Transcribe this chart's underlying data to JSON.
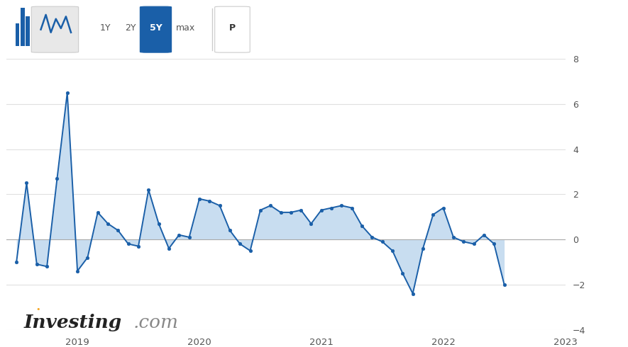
{
  "background_color": "#ffffff",
  "plot_bg_color": "#ffffff",
  "grid_color": "#e0e0e0",
  "line_color": "#1a5fa8",
  "fill_color": "#c8ddf0",
  "marker_color": "#1a5fa8",
  "zero_line_color": "#aaaaaa",
  "ylim": [
    -4,
    8
  ],
  "yticks": [
    -4,
    -2,
    0,
    2,
    4,
    6,
    8
  ],
  "ylabel_color": "#555555",
  "x_labels": [
    "2019",
    "2020",
    "2021",
    "2022",
    "2023"
  ],
  "x_positions": [
    6,
    18,
    30,
    42,
    54
  ],
  "data": [
    -1.0,
    2.5,
    -1.1,
    -1.2,
    2.7,
    6.5,
    -1.4,
    -0.8,
    1.2,
    0.7,
    0.4,
    -0.2,
    -0.3,
    2.2,
    0.7,
    -0.4,
    0.2,
    0.1,
    1.8,
    1.7,
    1.5,
    0.4,
    -0.2,
    -0.5,
    1.3,
    1.5,
    1.2,
    1.2,
    1.3,
    0.7,
    1.3,
    1.4,
    1.5,
    1.4,
    0.6,
    0.1,
    -0.1,
    -0.5,
    -1.5,
    -2.4,
    -0.4,
    1.1,
    1.4,
    0.1,
    -0.1,
    -0.2,
    0.2,
    -0.2,
    -2.0
  ],
  "header_bg": "#f7f7f7",
  "header_line_color": "#1a5fa8",
  "active_btn_bg": "#1a5fa8",
  "active_btn_color": "#ffffff",
  "inactive_btn_color": "#555555",
  "investing_color": "#222222",
  "com_color": "#888888",
  "dot_color": "#f5a623"
}
